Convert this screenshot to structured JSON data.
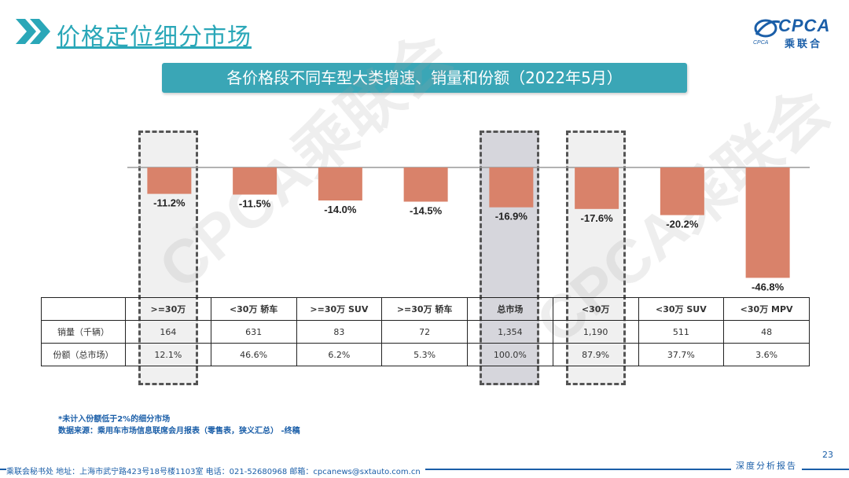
{
  "header": {
    "title": "价格定位细分市场"
  },
  "logo": {
    "main": "CPCA",
    "sub": "乘联合",
    "small": "CPCA"
  },
  "banner": {
    "text": "各价格段不同车型大类增速、销量和份额（2022年5月）"
  },
  "watermark": {
    "text": "CPCA乘联会"
  },
  "chart_data": {
    "type": "bar",
    "title": "各价格段不同车型大类增速、销量和份额（2022年5月）",
    "categories": [
      ">=30万",
      "<30万 轿车",
      ">=30万 SUV",
      ">=30万 轿车",
      "总市场",
      "<30万",
      "<30万 SUV",
      "<30万 MPV"
    ],
    "series": [
      {
        "name": "增速",
        "values": [
          -11.2,
          -11.5,
          -14.0,
          -14.5,
          -16.9,
          -17.6,
          -20.2,
          -46.8
        ]
      }
    ],
    "labels": [
      "-11.2%",
      "-11.5%",
      "-14.0%",
      "-14.5%",
      "-16.9%",
      "-17.6%",
      "-20.2%",
      "-46.8%"
    ],
    "ylim": [
      -50,
      0
    ],
    "bar_color": "#d9826a",
    "highlighted": [
      ">=30万",
      "总市场",
      "<30万"
    ]
  },
  "table": {
    "rows": [
      {
        "label": "销量（千辆）",
        "values": [
          "164",
          "631",
          "83",
          "72",
          "1,354",
          "1,190",
          "511",
          "48"
        ]
      },
      {
        "label": "份额（总市场）",
        "values": [
          "12.1%",
          "46.6%",
          "6.2%",
          "5.3%",
          "100.0%",
          "87.9%",
          "37.7%",
          "3.6%"
        ]
      }
    ]
  },
  "notes": {
    "line1": "*未计入份额低于2%的细分市场",
    "line2": "数据来源：乘用车市场信息联席会月报表（零售表，狭义汇总） -终稿"
  },
  "footer": {
    "contact": "乘联会秘书处   地址：上海市武宁路423号18号楼1103室  电话：021-52680968   邮箱：cpcanews@sxtauto.com.cn",
    "right_text": "深度分析报告",
    "page_number": "23"
  }
}
